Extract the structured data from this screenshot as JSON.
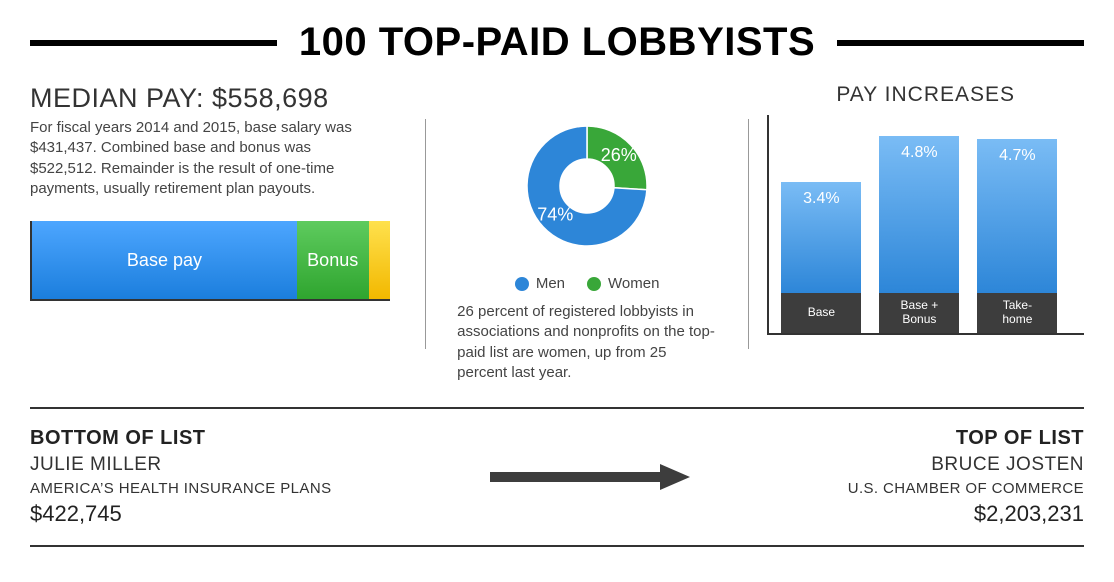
{
  "colors": {
    "text": "#333333",
    "divider": "#999999",
    "axis": "#333333",
    "blue_top": "#7abcf5",
    "blue_bottom": "#2d86d8",
    "bar_blue_top": "#4da6ff",
    "bar_blue_bottom": "#1b7edd",
    "green_top": "#5ecb5e",
    "green_bottom": "#2fa52f",
    "yellow_top": "#ffe14d",
    "yellow_bottom": "#f2b800",
    "dark_gray": "#3d3d3d",
    "hr": "#333333",
    "arrow": "#3d3d3d",
    "donut_blue": "#2d86d8",
    "donut_green": "#39a739"
  },
  "header": {
    "title": "100 TOP-PAID LOBBYISTS"
  },
  "median": {
    "heading": "MEDIAN PAY: $558,698",
    "body": "For fiscal years 2014 and 2015, base salary was $431,437. Combined base and bonus was $522,512. Remainder is the result of one-time payments, usually retirement plan payouts.",
    "segments": [
      {
        "key": "base",
        "label": "Base pay",
        "pct": 74,
        "show_label": true
      },
      {
        "key": "bonus",
        "label": "Bonus",
        "pct": 20,
        "show_label": true
      },
      {
        "key": "other",
        "label": "",
        "pct": 6,
        "show_label": false
      }
    ]
  },
  "gender": {
    "men_pct": 74,
    "women_pct": 26,
    "men_label": "74%",
    "women_label": "26%",
    "legend": {
      "men": "Men",
      "women": "Women"
    },
    "body": "26 percent of registered lobbyists in associations and nonprofits on the top-paid list are women, up from 25 percent last year."
  },
  "pay_increases": {
    "title": "PAY INCREASES",
    "ymax": 5.5,
    "bars": [
      {
        "label": "Base",
        "value": 3.4,
        "value_label": "3.4%"
      },
      {
        "label": "Base +\nBonus",
        "value": 4.8,
        "value_label": "4.8%"
      },
      {
        "label": "Take-\nhome",
        "value": 4.7,
        "value_label": "4.7%"
      }
    ]
  },
  "bottom": {
    "left": {
      "head": "BOTTOM OF LIST",
      "name": "JULIE MILLER",
      "org": "AMERICA’S HEALTH INSURANCE PLANS",
      "pay": "$422,745"
    },
    "right": {
      "head": "TOP OF LIST",
      "name": "BRUCE JOSTEN",
      "org": "U.S. CHAMBER OF COMMERCE",
      "pay": "$2,203,231"
    }
  }
}
